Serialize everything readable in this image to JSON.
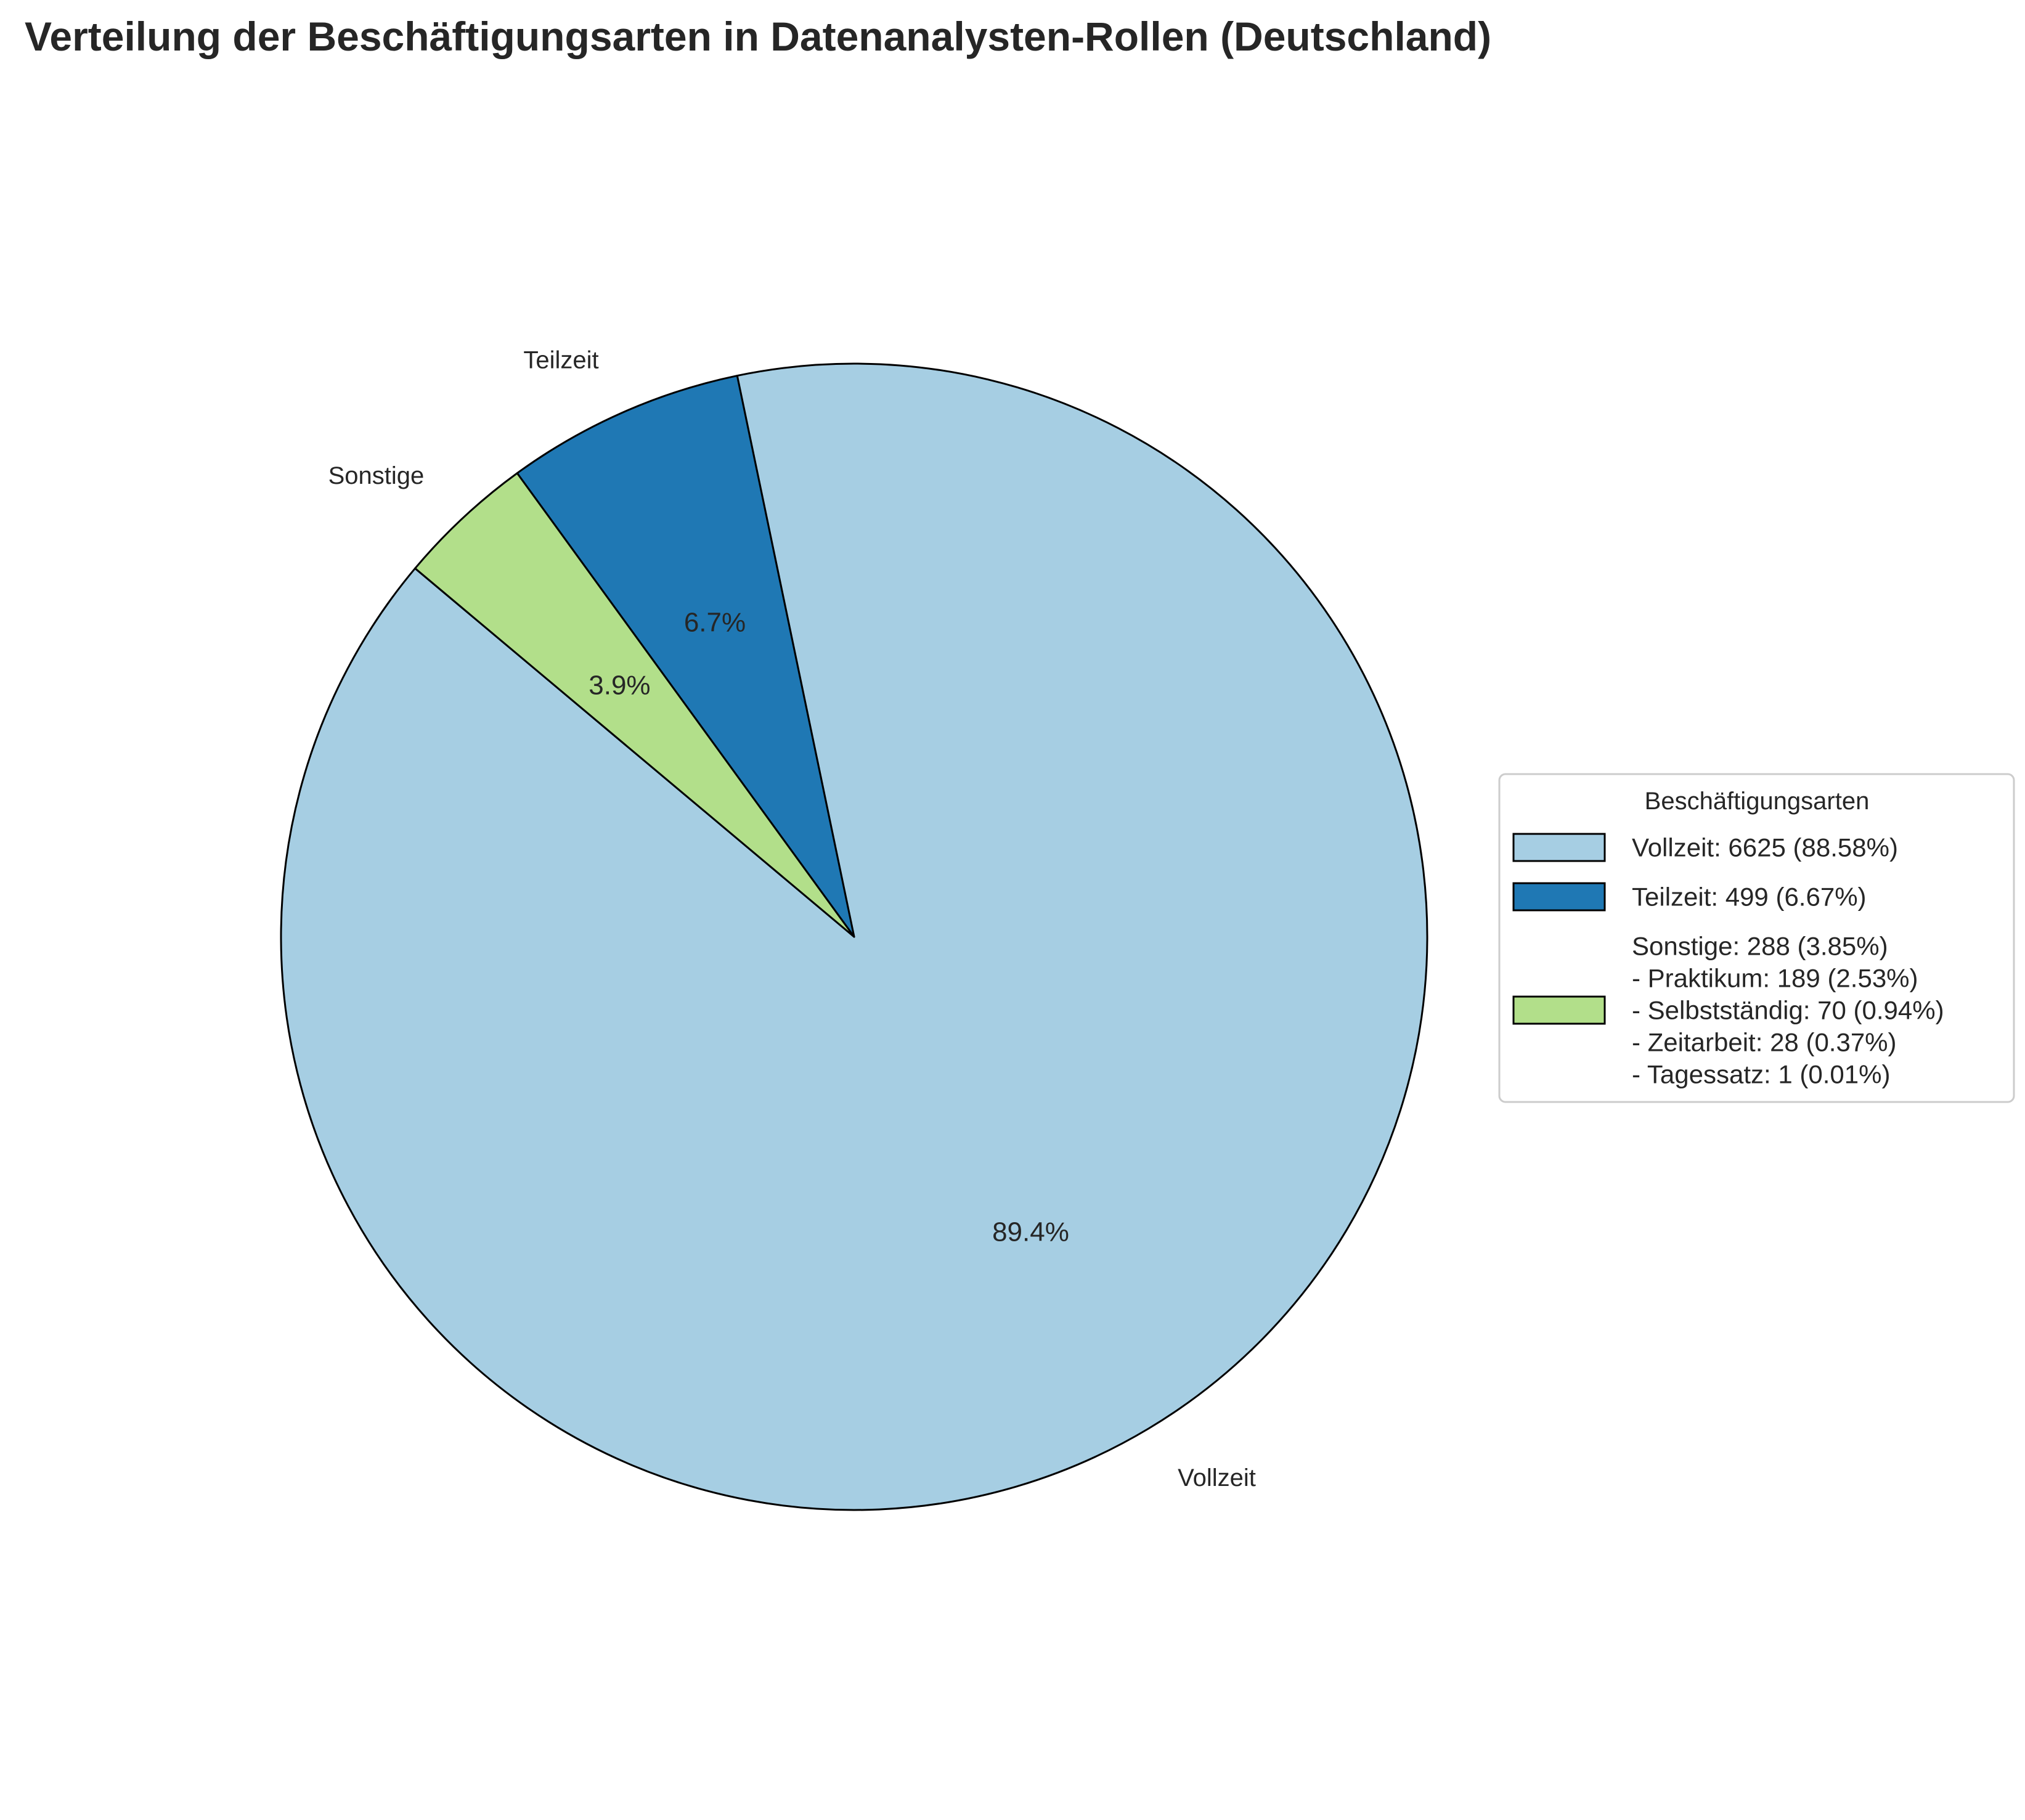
{
  "chart_data": {
    "type": "pie",
    "title": "Verteilung der Beschäftigungsarten in Datenanalysten-Rollen (Deutschland)",
    "slices": [
      {
        "label": "Vollzeit",
        "value": 6625,
        "pct_text": "89.4%",
        "color": "#a6cee3"
      },
      {
        "label": "Teilzeit",
        "value": 499,
        "pct_text": "6.7%",
        "color": "#1f78b4"
      },
      {
        "label": "Sonstige",
        "value": 288,
        "pct_text": "3.9%",
        "color": "#b2df8a"
      }
    ],
    "legend": {
      "title": "Beschäftigungsarten",
      "placement": "right",
      "entries": [
        {
          "lines": [
            "Vollzeit: 6625 (88.58%)"
          ],
          "color": "#a6cee3"
        },
        {
          "lines": [
            "Teilzeit: 499 (6.67%)"
          ],
          "color": "#1f78b4"
        },
        {
          "lines": [
            "Sonstige: 288 (3.85%)",
            "- Praktikum: 189 (2.53%)",
            "- Selbstständig: 70 (0.94%)",
            "- Zeitarbeit: 28 (0.37%)",
            "- Tagessatz: 1 (0.01%)"
          ],
          "color": "#b2df8a"
        }
      ]
    }
  }
}
